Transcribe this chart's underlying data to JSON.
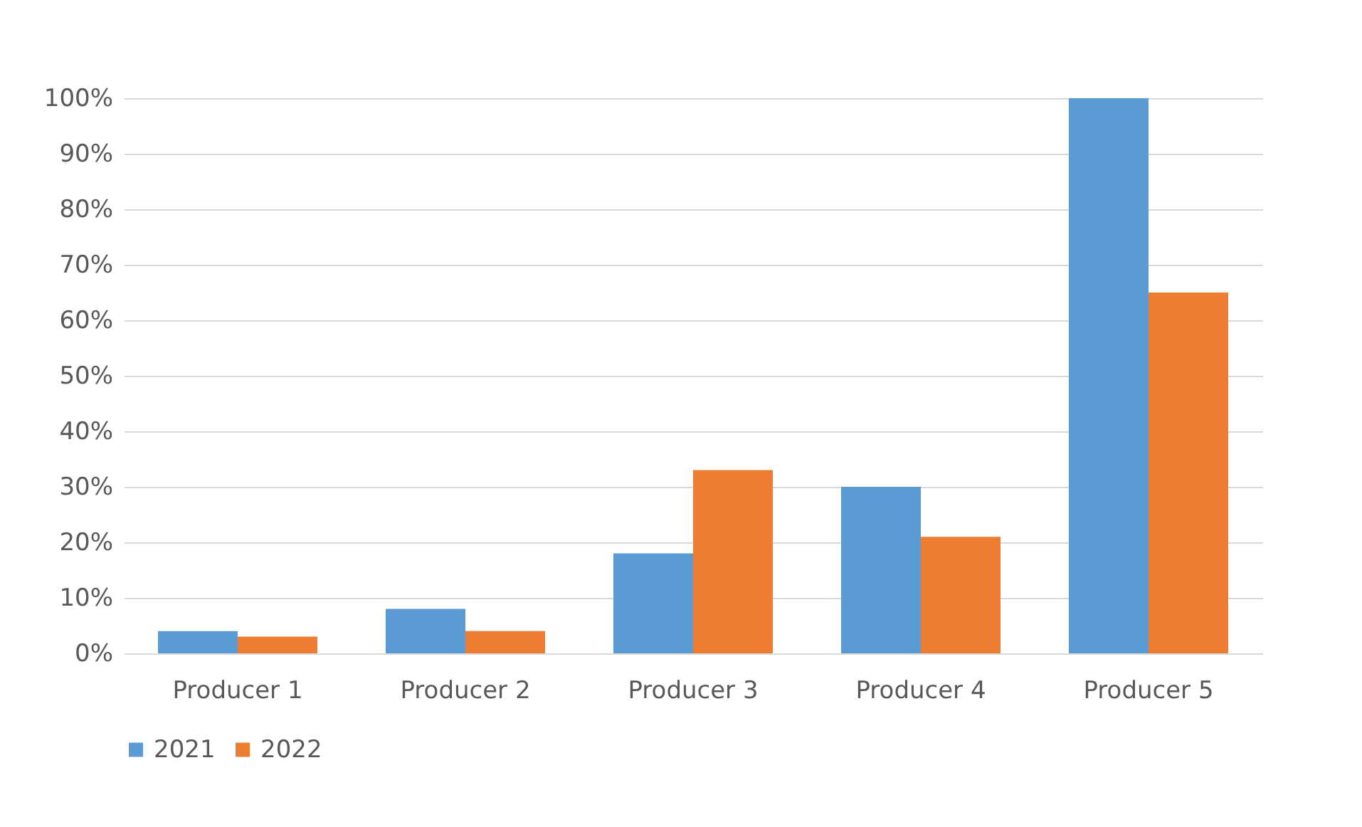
{
  "chart_data": {
    "type": "bar",
    "categories": [
      "Producer 1",
      "Producer 2",
      "Producer 3",
      "Producer 4",
      "Producer 5"
    ],
    "series": [
      {
        "name": "2021",
        "color": "#5b9bd5",
        "values": [
          4,
          8,
          18,
          30,
          100
        ]
      },
      {
        "name": "2022",
        "color": "#ed7d31",
        "values": [
          3,
          4,
          33,
          21,
          65
        ]
      }
    ],
    "ylim": [
      0,
      100
    ],
    "yticks": [
      {
        "value": 0,
        "label": "0%"
      },
      {
        "value": 10,
        "label": "10%"
      },
      {
        "value": 20,
        "label": "20%"
      },
      {
        "value": 30,
        "label": "30%"
      },
      {
        "value": 40,
        "label": "40%"
      },
      {
        "value": 50,
        "label": "50%"
      },
      {
        "value": 60,
        "label": "60%"
      },
      {
        "value": 70,
        "label": "70%"
      },
      {
        "value": 80,
        "label": "80%"
      },
      {
        "value": 90,
        "label": "90%"
      },
      {
        "value": 100,
        "label": "100%"
      }
    ],
    "grid": "y",
    "legend": "bottom"
  }
}
